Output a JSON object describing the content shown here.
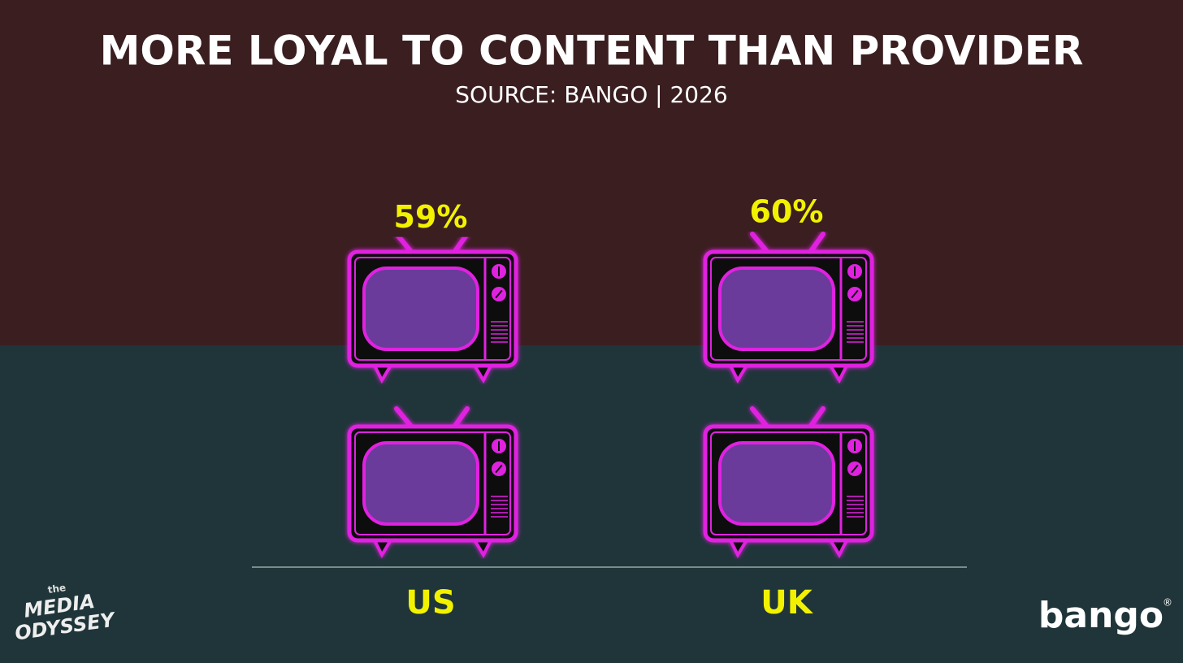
{
  "chart_data": {
    "type": "pictograph",
    "title": "MORE LOYAL TO CONTENT THAN PROVIDER",
    "subtitle": "SOURCE: BANGO | 2026",
    "categories": [
      "US",
      "UK"
    ],
    "values": [
      59,
      60
    ],
    "value_labels": [
      "59%",
      "60%"
    ],
    "color": "#e020e0",
    "label_color": "#f2f200"
  },
  "branding": {
    "left": [
      "the",
      "MEDIA",
      "ODYSSEY"
    ],
    "right": "bango",
    "right_mark": "®"
  }
}
